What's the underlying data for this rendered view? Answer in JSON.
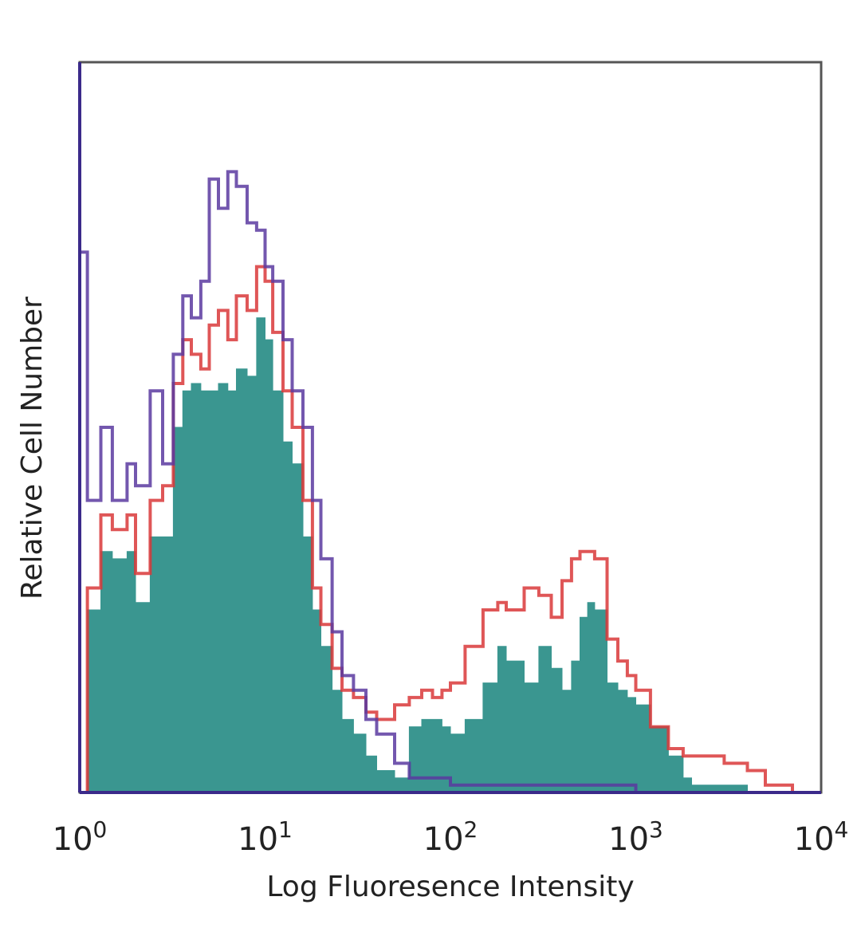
{
  "chart_data": {
    "type": "area",
    "title": "",
    "xlabel": "Log Fluoresence Intensity",
    "ylabel": "Relative Cell Number",
    "x_scale": "log",
    "xlim": [
      1,
      10000
    ],
    "ylim": [
      0,
      100
    ],
    "x_ticks": [
      {
        "base": "10",
        "exp": "0"
      },
      {
        "base": "10",
        "exp": "1"
      },
      {
        "base": "10",
        "exp": "2"
      },
      {
        "base": "10",
        "exp": "3"
      },
      {
        "base": "10",
        "exp": "4"
      }
    ],
    "grid": false,
    "legend": "none",
    "series": [
      {
        "color": "#3a9690",
        "style": "filled",
        "x": [
          1.1,
          1.3,
          1.5,
          1.8,
          2.0,
          2.4,
          2.8,
          3.2,
          3.6,
          4.0,
          4.5,
          5.0,
          5.6,
          6.3,
          7.0,
          8.0,
          9.0,
          10,
          11,
          12.5,
          14,
          16,
          18,
          20,
          23,
          26,
          30,
          35,
          40,
          50,
          60,
          70,
          80,
          90,
          100,
          120,
          150,
          180,
          200,
          250,
          300,
          350,
          400,
          450,
          500,
          550,
          600,
          700,
          800,
          900,
          1000,
          1200,
          1500,
          1800,
          2000,
          2500,
          3000,
          4000,
          5000,
          7000,
          10000
        ],
        "values": [
          25,
          33,
          32,
          33,
          26,
          35,
          35,
          50,
          55,
          56,
          55,
          55,
          56,
          55,
          58,
          57,
          65,
          62,
          55,
          48,
          45,
          35,
          25,
          20,
          14,
          10,
          8,
          5,
          3,
          2,
          9,
          10,
          10,
          9,
          8,
          10,
          15,
          20,
          18,
          15,
          20,
          17,
          14,
          18,
          24,
          26,
          25,
          15,
          14,
          13,
          12,
          9,
          5,
          2,
          1,
          1,
          1,
          0,
          0,
          0,
          0
        ]
      },
      {
        "color": "#d9383a",
        "style": "outline",
        "x": [
          1.1,
          1.3,
          1.5,
          1.8,
          2.0,
          2.4,
          2.8,
          3.2,
          3.6,
          4.0,
          4.5,
          5.0,
          5.6,
          6.3,
          7.0,
          8.0,
          9.0,
          10,
          11,
          12.5,
          14,
          16,
          18,
          20,
          23,
          26,
          30,
          35,
          40,
          50,
          60,
          70,
          80,
          90,
          100,
          120,
          150,
          180,
          200,
          250,
          300,
          350,
          400,
          450,
          500,
          550,
          600,
          700,
          800,
          900,
          1000,
          1200,
          1500,
          1800,
          2000,
          2500,
          3000,
          4000,
          5000,
          7000,
          10000
        ],
        "values": [
          28,
          38,
          36,
          38,
          30,
          40,
          42,
          56,
          62,
          60,
          58,
          64,
          66,
          62,
          68,
          66,
          72,
          70,
          63,
          55,
          50,
          40,
          28,
          23,
          17,
          14,
          13,
          11,
          10,
          12,
          13,
          14,
          13,
          14,
          15,
          20,
          25,
          26,
          25,
          28,
          27,
          24,
          29,
          32,
          33,
          33,
          32,
          21,
          18,
          16,
          14,
          9,
          6,
          5,
          5,
          5,
          4,
          3,
          1,
          0,
          0
        ]
      },
      {
        "color": "#5a3aa0",
        "style": "outline",
        "x": [
          1.0,
          1.1,
          1.3,
          1.5,
          1.8,
          2.0,
          2.4,
          2.8,
          3.2,
          3.6,
          4.0,
          4.5,
          5.0,
          5.6,
          6.3,
          7.0,
          8.0,
          9.0,
          10,
          11,
          12.5,
          14,
          16,
          18,
          20,
          23,
          26,
          30,
          35,
          40,
          50,
          60,
          80,
          100,
          200,
          400,
          1000,
          10000
        ],
        "values": [
          74,
          40,
          50,
          40,
          45,
          42,
          55,
          45,
          60,
          68,
          65,
          70,
          84,
          80,
          85,
          83,
          78,
          77,
          72,
          70,
          62,
          55,
          50,
          40,
          32,
          22,
          16,
          14,
          10,
          8,
          4,
          2,
          2,
          1,
          1,
          1,
          0,
          0
        ]
      }
    ]
  }
}
